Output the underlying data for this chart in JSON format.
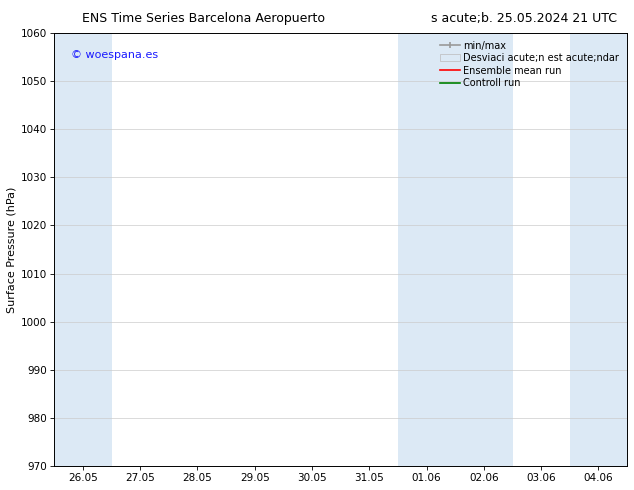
{
  "title_left": "ENS Time Series Barcelona Aeropuerto",
  "title_right": "s acute;b. 25.05.2024 21 UTC",
  "ylabel": "Surface Pressure (hPa)",
  "ylim": [
    970,
    1060
  ],
  "yticks": [
    970,
    980,
    990,
    1000,
    1010,
    1020,
    1030,
    1040,
    1050,
    1060
  ],
  "xlabel_ticks": [
    "26.05",
    "27.05",
    "28.05",
    "29.05",
    "30.05",
    "31.05",
    "01.06",
    "02.06",
    "03.06",
    "04.06"
  ],
  "shaded_color": "#dce9f5",
  "background_color": "#ffffff",
  "watermark_text": "© woespana.es",
  "watermark_color": "#1a1aff",
  "legend_label_minmax": "min/max",
  "legend_label_desv": "Desviaci acute;n est acute;ndar",
  "legend_label_ensemble": "Ensemble mean run",
  "legend_label_control": "Controll run",
  "title_fontsize": 9,
  "label_fontsize": 8,
  "tick_fontsize": 7.5,
  "legend_fontsize": 7
}
